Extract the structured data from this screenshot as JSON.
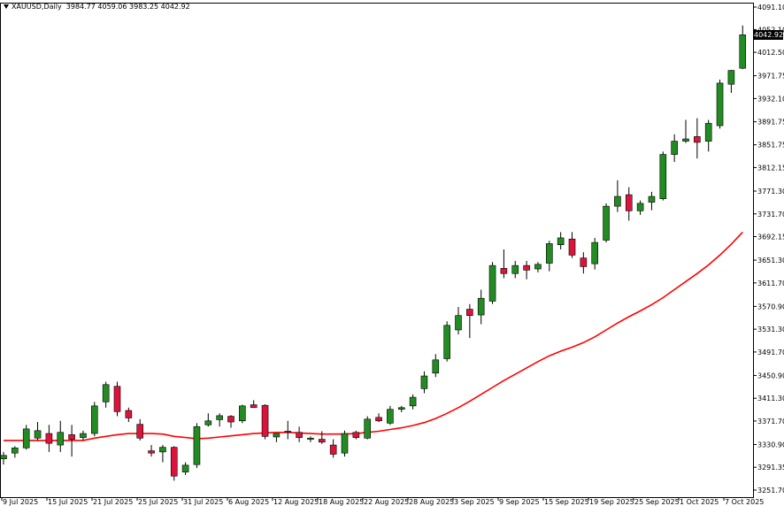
{
  "header": {
    "symbol_timeframe": "XAUUSD,Daily",
    "ohlc": "3984.77 4059.06 3983.25 4042.92"
  },
  "current_price_label": "4042.92",
  "colors": {
    "bull": "#228b22",
    "bear": "#dc143c",
    "ma": "#ff0000",
    "background": "#ffffff",
    "axis": "#000000"
  },
  "chart_data": {
    "type": "candlestick",
    "title": "XAUUSD,Daily",
    "ylim": [
      3251.7,
      4091.1
    ],
    "y_ticks": [
      "4091.10",
      "4052.10",
      "4012.50",
      "3971.75",
      "3932.10",
      "3891.75",
      "3851.75",
      "3812.15",
      "3771.30",
      "3731.70",
      "3692.15",
      "3651.30",
      "3611.70",
      "3570.90",
      "3531.30",
      "3491.70",
      "3450.90",
      "3411.30",
      "3371.70",
      "3330.90",
      "3291.35",
      "3251.70"
    ],
    "x_tick_labels": [
      "9 Jul 2025",
      "15 Jul 2025",
      "21 Jul 2025",
      "25 Jul 2025",
      "31 Jul 2025",
      "6 Aug 2025",
      "12 Aug 2025",
      "18 Aug 2025",
      "22 Aug 2025",
      "28 Aug 2025",
      "3 Sep 2025",
      "9 Sep 2025",
      "15 Sep 2025",
      "19 Sep 2025",
      "25 Sep 2025",
      "1 Oct 2025",
      "7 Oct 2025"
    ],
    "candles": [
      {
        "o": 3306,
        "h": 3318,
        "l": 3296,
        "c": 3312
      },
      {
        "o": 3316,
        "h": 3328,
        "l": 3308,
        "c": 3325
      },
      {
        "o": 3325,
        "h": 3365,
        "l": 3322,
        "c": 3358
      },
      {
        "o": 3342,
        "h": 3370,
        "l": 3338,
        "c": 3355
      },
      {
        "o": 3350,
        "h": 3365,
        "l": 3318,
        "c": 3333
      },
      {
        "o": 3330,
        "h": 3372,
        "l": 3318,
        "c": 3352
      },
      {
        "o": 3348,
        "h": 3365,
        "l": 3310,
        "c": 3340
      },
      {
        "o": 3343,
        "h": 3355,
        "l": 3338,
        "c": 3350
      },
      {
        "o": 3350,
        "h": 3405,
        "l": 3345,
        "c": 3398
      },
      {
        "o": 3405,
        "h": 3440,
        "l": 3395,
        "c": 3435
      },
      {
        "o": 3432,
        "h": 3440,
        "l": 3380,
        "c": 3388
      },
      {
        "o": 3390,
        "h": 3395,
        "l": 3370,
        "c": 3377
      },
      {
        "o": 3366,
        "h": 3375,
        "l": 3338,
        "c": 3342
      },
      {
        "o": 3320,
        "h": 3330,
        "l": 3310,
        "c": 3316
      },
      {
        "o": 3318,
        "h": 3330,
        "l": 3300,
        "c": 3326
      },
      {
        "o": 3326,
        "h": 3328,
        "l": 3268,
        "c": 3276
      },
      {
        "o": 3283,
        "h": 3300,
        "l": 3278,
        "c": 3295
      },
      {
        "o": 3296,
        "h": 3368,
        "l": 3290,
        "c": 3362
      },
      {
        "o": 3365,
        "h": 3385,
        "l": 3362,
        "c": 3372
      },
      {
        "o": 3374,
        "h": 3385,
        "l": 3362,
        "c": 3381
      },
      {
        "o": 3380,
        "h": 3382,
        "l": 3360,
        "c": 3370
      },
      {
        "o": 3372,
        "h": 3400,
        "l": 3368,
        "c": 3398
      },
      {
        "o": 3400,
        "h": 3408,
        "l": 3395,
        "c": 3395
      },
      {
        "o": 3399,
        "h": 3401,
        "l": 3340,
        "c": 3345
      },
      {
        "o": 3344,
        "h": 3350,
        "l": 3335,
        "c": 3350
      },
      {
        "o": 3354,
        "h": 3372,
        "l": 3340,
        "c": 3352
      },
      {
        "o": 3352,
        "h": 3362,
        "l": 3335,
        "c": 3343
      },
      {
        "o": 3340,
        "h": 3345,
        "l": 3335,
        "c": 3342
      },
      {
        "o": 3340,
        "h": 3354,
        "l": 3332,
        "c": 3335
      },
      {
        "o": 3330,
        "h": 3340,
        "l": 3308,
        "c": 3314
      },
      {
        "o": 3316,
        "h": 3355,
        "l": 3310,
        "c": 3350
      },
      {
        "o": 3352,
        "h": 3355,
        "l": 3340,
        "c": 3343
      },
      {
        "o": 3342,
        "h": 3380,
        "l": 3340,
        "c": 3375
      },
      {
        "o": 3378,
        "h": 3385,
        "l": 3370,
        "c": 3372
      },
      {
        "o": 3368,
        "h": 3398,
        "l": 3365,
        "c": 3392
      },
      {
        "o": 3392,
        "h": 3398,
        "l": 3387,
        "c": 3395
      },
      {
        "o": 3398,
        "h": 3418,
        "l": 3392,
        "c": 3413
      },
      {
        "o": 3428,
        "h": 3458,
        "l": 3420,
        "c": 3450
      },
      {
        "o": 3455,
        "h": 3488,
        "l": 3448,
        "c": 3478
      },
      {
        "o": 3480,
        "h": 3545,
        "l": 3475,
        "c": 3538
      },
      {
        "o": 3530,
        "h": 3570,
        "l": 3522,
        "c": 3555
      },
      {
        "o": 3566,
        "h": 3575,
        "l": 3516,
        "c": 3555
      },
      {
        "o": 3556,
        "h": 3600,
        "l": 3540,
        "c": 3585
      },
      {
        "o": 3580,
        "h": 3648,
        "l": 3575,
        "c": 3642
      },
      {
        "o": 3637,
        "h": 3670,
        "l": 3620,
        "c": 3628
      },
      {
        "o": 3628,
        "h": 3650,
        "l": 3620,
        "c": 3642
      },
      {
        "o": 3642,
        "h": 3650,
        "l": 3618,
        "c": 3634
      },
      {
        "o": 3636,
        "h": 3648,
        "l": 3630,
        "c": 3644
      },
      {
        "o": 3646,
        "h": 3685,
        "l": 3632,
        "c": 3680
      },
      {
        "o": 3678,
        "h": 3700,
        "l": 3670,
        "c": 3690
      },
      {
        "o": 3688,
        "h": 3700,
        "l": 3655,
        "c": 3660
      },
      {
        "o": 3655,
        "h": 3665,
        "l": 3628,
        "c": 3640
      },
      {
        "o": 3645,
        "h": 3690,
        "l": 3635,
        "c": 3682
      },
      {
        "o": 3686,
        "h": 3750,
        "l": 3682,
        "c": 3745
      },
      {
        "o": 3745,
        "h": 3790,
        "l": 3735,
        "c": 3762
      },
      {
        "o": 3765,
        "h": 3778,
        "l": 3720,
        "c": 3737
      },
      {
        "o": 3737,
        "h": 3755,
        "l": 3730,
        "c": 3750
      },
      {
        "o": 3752,
        "h": 3770,
        "l": 3738,
        "c": 3762
      },
      {
        "o": 3758,
        "h": 3840,
        "l": 3755,
        "c": 3835
      },
      {
        "o": 3835,
        "h": 3870,
        "l": 3822,
        "c": 3858
      },
      {
        "o": 3858,
        "h": 3895,
        "l": 3855,
        "c": 3862
      },
      {
        "o": 3866,
        "h": 3898,
        "l": 3828,
        "c": 3856
      },
      {
        "o": 3858,
        "h": 3895,
        "l": 3840,
        "c": 3889
      },
      {
        "o": 3885,
        "h": 3965,
        "l": 3880,
        "c": 3959
      },
      {
        "o": 3957,
        "h": 3982,
        "l": 3942,
        "c": 3981
      },
      {
        "o": 3984.77,
        "h": 4059.06,
        "l": 3983.25,
        "c": 4042.92
      }
    ],
    "ma": [
      3338,
      3338,
      3338,
      3338,
      3338,
      3338,
      3338,
      3338,
      3342,
      3345,
      3348,
      3350,
      3350,
      3350,
      3349,
      3345,
      3343,
      3341,
      3342,
      3344,
      3346,
      3348,
      3350,
      3351,
      3352,
      3352,
      3351,
      3350,
      3349,
      3349,
      3349,
      3350,
      3352,
      3354,
      3357,
      3360,
      3364,
      3369,
      3376,
      3385,
      3395,
      3406,
      3418,
      3430,
      3442,
      3453,
      3464,
      3475,
      3485,
      3493,
      3500,
      3508,
      3518,
      3530,
      3542,
      3553,
      3563,
      3574,
      3586,
      3600,
      3614,
      3628,
      3643,
      3660,
      3679,
      3700
    ]
  }
}
